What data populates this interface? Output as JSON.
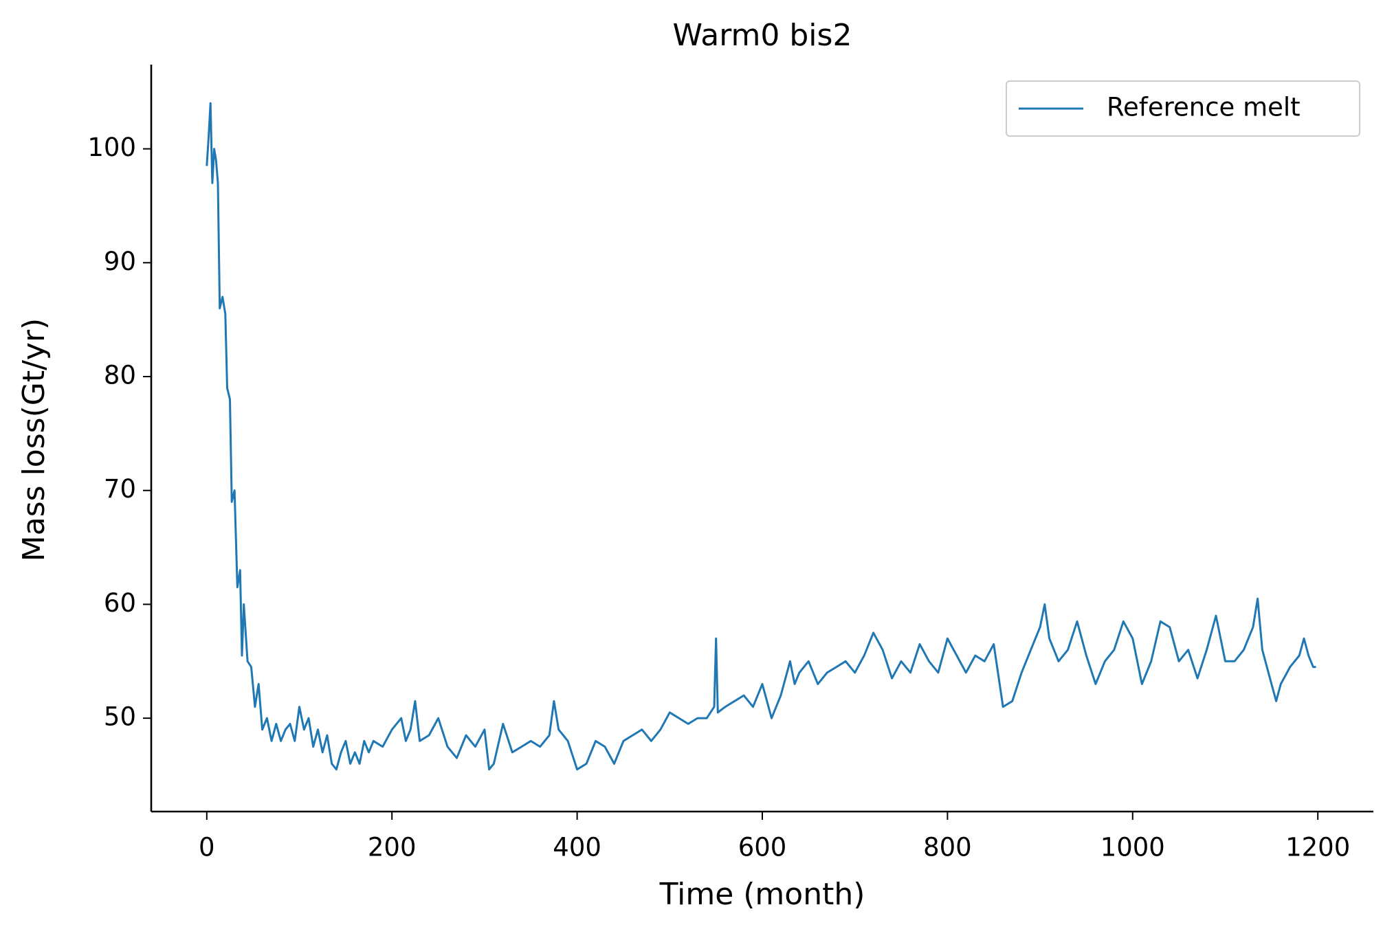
{
  "chart_data": {
    "type": "line",
    "title": "Warm0 bis2",
    "x_label": "Time (month)",
    "y_label": "Mass loss(Gt/yr)",
    "x": [
      0,
      2,
      4,
      6,
      8,
      10,
      12,
      14,
      17,
      20,
      22,
      25,
      27,
      30,
      33,
      36,
      38,
      40,
      44,
      48,
      52,
      56,
      60,
      65,
      70,
      75,
      80,
      85,
      90,
      95,
      100,
      105,
      110,
      115,
      120,
      125,
      130,
      135,
      140,
      145,
      150,
      155,
      160,
      165,
      170,
      175,
      180,
      190,
      200,
      210,
      215,
      220,
      225,
      230,
      240,
      250,
      260,
      270,
      280,
      290,
      300,
      305,
      310,
      320,
      330,
      340,
      350,
      360,
      370,
      375,
      380,
      390,
      400,
      410,
      420,
      430,
      440,
      450,
      460,
      470,
      480,
      490,
      500,
      510,
      520,
      530,
      540,
      548,
      550,
      552,
      560,
      570,
      580,
      590,
      600,
      610,
      620,
      625,
      630,
      635,
      640,
      650,
      660,
      670,
      680,
      690,
      700,
      710,
      720,
      730,
      740,
      750,
      760,
      770,
      780,
      790,
      800,
      810,
      820,
      830,
      840,
      850,
      860,
      870,
      880,
      890,
      900,
      905,
      910,
      920,
      930,
      940,
      950,
      960,
      970,
      980,
      990,
      1000,
      1010,
      1020,
      1030,
      1040,
      1050,
      1060,
      1070,
      1080,
      1090,
      1100,
      1110,
      1120,
      1130,
      1135,
      1140,
      1150,
      1155,
      1160,
      1170,
      1180,
      1185,
      1190,
      1195,
      1198
    ],
    "series": [
      {
        "name": "Reference melt",
        "color": "#1f77b4",
        "values": [
          98.5,
          101,
          104,
          97,
          100,
          99,
          97,
          86,
          87,
          85.5,
          79,
          78,
          69,
          70,
          61.5,
          63,
          55.5,
          60,
          55,
          54.5,
          51,
          53,
          49,
          50,
          48,
          49.5,
          48,
          49,
          49.5,
          48,
          51,
          49,
          50,
          47.5,
          49,
          47,
          48.5,
          46,
          45.5,
          47,
          48,
          46,
          47,
          46,
          48,
          47,
          48,
          47.5,
          49,
          50,
          48,
          49,
          51.5,
          48,
          48.5,
          50,
          47.5,
          46.5,
          48.5,
          47.5,
          49,
          45.5,
          46,
          49.5,
          47,
          47.5,
          48,
          47.5,
          48.5,
          51.5,
          49,
          48,
          45.5,
          46,
          48,
          47.5,
          46,
          48,
          48.5,
          49,
          48,
          49,
          50.5,
          50,
          49.5,
          50,
          50,
          51,
          57,
          50.5,
          51,
          51.5,
          52,
          51,
          53,
          50,
          52,
          53.5,
          55,
          53,
          54,
          55,
          53,
          54,
          54.5,
          55,
          54,
          55.5,
          57.5,
          56,
          53.5,
          55,
          54,
          56.5,
          55,
          54,
          57,
          55.5,
          54,
          55.5,
          55,
          56.5,
          51,
          51.5,
          54,
          56,
          58,
          60,
          57,
          55,
          56,
          58.5,
          55.5,
          53,
          55,
          56,
          58.5,
          57,
          53,
          55,
          58.5,
          58,
          55,
          56,
          53.5,
          56,
          59,
          55,
          55,
          56,
          58,
          60.5,
          56,
          53,
          51.5,
          53,
          54.5,
          55.5,
          57,
          55.5,
          54.5,
          54.5
        ]
      }
    ],
    "xlim": [
      -60,
      1260
    ],
    "ylim": [
      41.8,
      107.4
    ],
    "xticks": [
      0,
      200,
      400,
      600,
      800,
      1000,
      1200
    ],
    "yticks": [
      50,
      60,
      70,
      80,
      90,
      100
    ],
    "legend": "upper right"
  }
}
